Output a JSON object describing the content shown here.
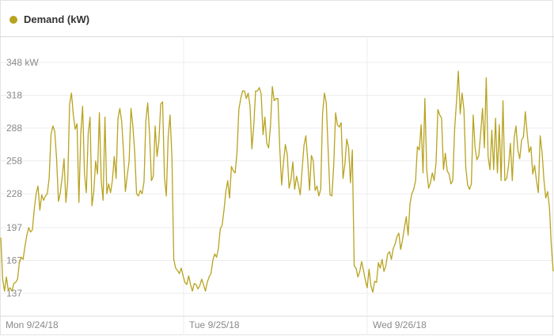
{
  "legend": {
    "label": "Demand (kW)",
    "color": "#b8a320"
  },
  "chart_data": {
    "type": "line",
    "series": [
      {
        "name": "Demand (kW)",
        "color": "#b8a320",
        "values": [
          188,
          150,
          139,
          152,
          140,
          142,
          139,
          146,
          147,
          150,
          165,
          170,
          168,
          180,
          190,
          197,
          193,
          195,
          214,
          228,
          235,
          213,
          227,
          222,
          226,
          228,
          242,
          282,
          290,
          285,
          260,
          221,
          229,
          243,
          260,
          220,
          240,
          310,
          320,
          300,
          287,
          292,
          220,
          283,
          308,
          246,
          229,
          283,
          298,
          217,
          230,
          258,
          246,
          302,
          240,
          222,
          298,
          228,
          237,
          229,
          240,
          262,
          242,
          297,
          306,
          294,
          266,
          230,
          245,
          258,
          306,
          290,
          266,
          228,
          226,
          231,
          228,
          239,
          295,
          311,
          282,
          240,
          244,
          290,
          262,
          276,
          310,
          312,
          243,
          226,
          280,
          300,
          262,
          168,
          160,
          158,
          155,
          160,
          153,
          147,
          145,
          153,
          145,
          139,
          146,
          145,
          141,
          144,
          150,
          145,
          139,
          147,
          152,
          155,
          167,
          173,
          170,
          178,
          196,
          199,
          213,
          230,
          240,
          224,
          253,
          249,
          247,
          266,
          305,
          315,
          322,
          322,
          315,
          320,
          308,
          269,
          290,
          322,
          322,
          325,
          319,
          282,
          298,
          274,
          270,
          290,
          326,
          313,
          315,
          315,
          269,
          236,
          257,
          273,
          264,
          233,
          241,
          257,
          232,
          244,
          236,
          227,
          250,
          272,
          281,
          259,
          231,
          263,
          258,
          231,
          235,
          226,
          232,
          301,
          320,
          311,
          268,
          227,
          226,
          254,
          302,
          291,
          289,
          293,
          242,
          255,
          278,
          270,
          238,
          268,
          162,
          160,
          152,
          157,
          166,
          158,
          149,
          142,
          159,
          144,
          138,
          148,
          147,
          165,
          160,
          168,
          157,
          162,
          173,
          175,
          168,
          178,
          182,
          189,
          192,
          177,
          186,
          197,
          207,
          190,
          219,
          228,
          232,
          240,
          271,
          268,
          291,
          247,
          315,
          250,
          233,
          238,
          247,
          240,
          256,
          305,
          300,
          297,
          250,
          265,
          249,
          246,
          237,
          240,
          287,
          312,
          340,
          301,
          320,
          305,
          252,
          236,
          232,
          237,
          300,
          270,
          259,
          263,
          283,
          306,
          270,
          334,
          262,
          250,
          286,
          250,
          297,
          247,
          291,
          240,
          313,
          240,
          242,
          254,
          274,
          240,
          279,
          290,
          268,
          260,
          277,
          280,
          303,
          283,
          266,
          271,
          246,
          254,
          240,
          229,
          281,
          266,
          241,
          224,
          230,
          215,
          180,
          157
        ]
      }
    ],
    "x_labels": [
      "Mon 9/24/18",
      "Tue 9/25/18",
      "Wed 9/26/18"
    ],
    "y_ticks": [
      {
        "value": 137,
        "label": "137"
      },
      {
        "value": 167,
        "label": "167"
      },
      {
        "value": 197,
        "label": "197"
      },
      {
        "value": 228,
        "label": "228"
      },
      {
        "value": 258,
        "label": "258"
      },
      {
        "value": 288,
        "label": "288"
      },
      {
        "value": 318,
        "label": "318"
      },
      {
        "value": 348,
        "label": "348 kW"
      }
    ],
    "ylim": [
      128,
      355
    ],
    "x_range_days": [
      0,
      3
    ],
    "grid": true
  }
}
